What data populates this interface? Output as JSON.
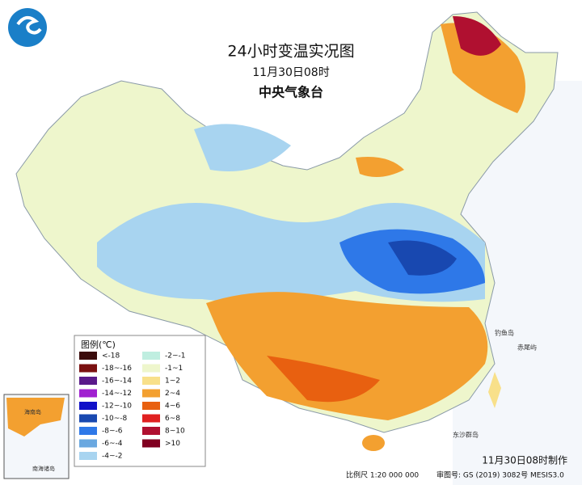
{
  "header": {
    "title": "24小时变温实况图",
    "date": "11月30日08时",
    "agency": "中央气象台"
  },
  "legend": {
    "title": "图例(℃)",
    "items": [
      {
        "label": "<-18",
        "color": "#3a0b0b"
      },
      {
        "label": "-18~-16",
        "color": "#7a1010"
      },
      {
        "label": "-16~-14",
        "color": "#5a1a8a"
      },
      {
        "label": "-14~-12",
        "color": "#a020d0"
      },
      {
        "label": "-12~-10",
        "color": "#1010c8"
      },
      {
        "label": "-10~-8",
        "color": "#1848b0"
      },
      {
        "label": "-8~-6",
        "color": "#2e78e8"
      },
      {
        "label": "-6~-4",
        "color": "#6aa8e0"
      },
      {
        "label": "-4~-2",
        "color": "#a8d4f0"
      },
      {
        "label": "-2~-1",
        "color": "#bfeee0"
      },
      {
        "label": "-1~1",
        "color": "#eef6cc"
      },
      {
        "label": "1~2",
        "color": "#f8e08a"
      },
      {
        "label": "2~4",
        "color": "#f3a030"
      },
      {
        "label": "4~6",
        "color": "#e86010"
      },
      {
        "label": "6~8",
        "color": "#e02020"
      },
      {
        "label": "8~10",
        "color": "#b01030"
      },
      {
        "label": ">10",
        "color": "#800020"
      }
    ]
  },
  "map_labels": [
    "钓鱼岛",
    "赤尾屿",
    "东沙群岛",
    "海南岛",
    "南海诸岛"
  ],
  "footer": {
    "made": "11月30日08时制作",
    "scale": "比例尺 1:20 000 000",
    "approval": "审图号: GS (2019) 3082号 MESIS3.0"
  }
}
